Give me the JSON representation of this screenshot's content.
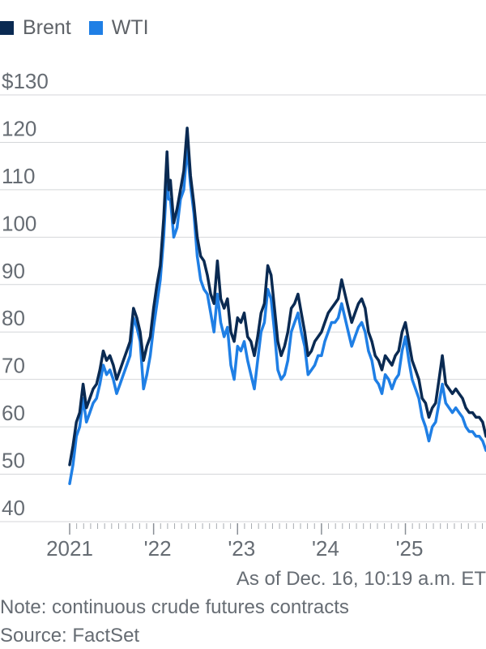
{
  "legend": [
    {
      "label": "Brent",
      "color": "#0a2a52"
    },
    {
      "label": "WTI",
      "color": "#1f7fe5"
    }
  ],
  "footer": {
    "as_of": "As of Dec. 16, 10:19 a.m. ET",
    "note": "Note: continuous crude futures contracts",
    "source": "Source: FactSet"
  },
  "chart_data": {
    "type": "line",
    "title": "",
    "xlabel": "",
    "ylabel": "",
    "y_tick_labels": [
      "$130",
      "120",
      "110",
      "100",
      "90",
      "80",
      "70",
      "60",
      "50",
      "40"
    ],
    "y_ticks": [
      130,
      120,
      110,
      100,
      90,
      80,
      70,
      60,
      50,
      40
    ],
    "x_tick_labels": [
      "2021",
      "'22",
      "'23",
      "'24",
      "'25"
    ],
    "x_ticks": [
      2021,
      2022,
      2023,
      2024,
      2025
    ],
    "xlim": [
      2021,
      2025.96
    ],
    "ylim": [
      40,
      130
    ],
    "grid": true,
    "legend_position": "top-left",
    "series": [
      {
        "name": "Brent",
        "color": "#0a2a52",
        "x": [
          2021.0,
          2021.04,
          2021.08,
          2021.12,
          2021.16,
          2021.2,
          2021.24,
          2021.28,
          2021.32,
          2021.36,
          2021.4,
          2021.44,
          2021.48,
          2021.52,
          2021.56,
          2021.6,
          2021.64,
          2021.68,
          2021.72,
          2021.76,
          2021.8,
          2021.84,
          2021.88,
          2021.92,
          2021.96,
          2022.0,
          2022.04,
          2022.08,
          2022.12,
          2022.16,
          2022.18,
          2022.2,
          2022.24,
          2022.28,
          2022.32,
          2022.36,
          2022.4,
          2022.44,
          2022.48,
          2022.52,
          2022.56,
          2022.6,
          2022.64,
          2022.68,
          2022.72,
          2022.76,
          2022.8,
          2022.84,
          2022.88,
          2022.92,
          2022.96,
          2023.0,
          2023.04,
          2023.08,
          2023.12,
          2023.16,
          2023.2,
          2023.24,
          2023.28,
          2023.32,
          2023.36,
          2023.4,
          2023.44,
          2023.48,
          2023.52,
          2023.56,
          2023.6,
          2023.64,
          2023.68,
          2023.72,
          2023.76,
          2023.8,
          2023.84,
          2023.88,
          2023.92,
          2023.96,
          2024.0,
          2024.04,
          2024.08,
          2024.12,
          2024.16,
          2024.2,
          2024.24,
          2024.28,
          2024.32,
          2024.36,
          2024.4,
          2024.44,
          2024.48,
          2024.52,
          2024.56,
          2024.6,
          2024.64,
          2024.68,
          2024.72,
          2024.76,
          2024.8,
          2024.84,
          2024.88,
          2024.92,
          2024.96,
          2025.0,
          2025.04,
          2025.08,
          2025.12,
          2025.16,
          2025.2,
          2025.24,
          2025.28,
          2025.32,
          2025.36,
          2025.4,
          2025.44,
          2025.48,
          2025.52,
          2025.56,
          2025.6,
          2025.64,
          2025.68,
          2025.72,
          2025.76,
          2025.8,
          2025.84,
          2025.88,
          2025.92,
          2025.96
        ],
        "values": [
          52,
          56,
          61,
          63,
          69,
          64,
          66,
          68,
          69,
          72,
          76,
          74,
          75,
          73,
          70,
          72,
          74,
          76,
          78,
          85,
          83,
          80,
          74,
          77,
          79,
          85,
          90,
          94,
          104,
          118,
          110,
          112,
          103,
          106,
          110,
          114,
          123,
          113,
          107,
          100,
          96,
          95,
          92,
          88,
          86,
          95,
          87,
          85,
          87,
          80,
          78,
          83,
          82,
          84,
          79,
          78,
          75,
          79,
          84,
          86,
          94,
          92,
          85,
          78,
          75,
          77,
          80,
          85,
          86,
          88,
          84,
          80,
          75,
          76,
          78,
          79,
          80,
          82,
          84,
          85,
          86,
          87,
          91,
          88,
          85,
          82,
          84,
          86,
          87,
          85,
          80,
          78,
          75,
          74,
          72,
          75,
          74,
          73,
          75,
          76,
          80,
          82,
          78,
          74,
          72,
          70,
          66,
          65,
          62,
          64,
          65,
          70,
          75,
          69,
          68,
          67,
          68,
          67,
          66,
          64,
          63,
          63,
          62,
          62,
          61,
          58
        ]
      },
      {
        "name": "WTI",
        "color": "#1f7fe5",
        "x": [
          2021.0,
          2021.04,
          2021.08,
          2021.12,
          2021.16,
          2021.2,
          2021.24,
          2021.28,
          2021.32,
          2021.36,
          2021.4,
          2021.44,
          2021.48,
          2021.52,
          2021.56,
          2021.6,
          2021.64,
          2021.68,
          2021.72,
          2021.76,
          2021.8,
          2021.84,
          2021.88,
          2021.92,
          2021.96,
          2022.0,
          2022.04,
          2022.08,
          2022.12,
          2022.16,
          2022.18,
          2022.2,
          2022.24,
          2022.28,
          2022.32,
          2022.36,
          2022.4,
          2022.44,
          2022.48,
          2022.52,
          2022.56,
          2022.6,
          2022.64,
          2022.68,
          2022.72,
          2022.76,
          2022.8,
          2022.84,
          2022.88,
          2022.92,
          2022.96,
          2023.0,
          2023.04,
          2023.08,
          2023.12,
          2023.16,
          2023.2,
          2023.24,
          2023.28,
          2023.32,
          2023.36,
          2023.4,
          2023.44,
          2023.48,
          2023.52,
          2023.56,
          2023.6,
          2023.64,
          2023.68,
          2023.72,
          2023.76,
          2023.8,
          2023.84,
          2023.88,
          2023.92,
          2023.96,
          2024.0,
          2024.04,
          2024.08,
          2024.12,
          2024.16,
          2024.2,
          2024.24,
          2024.28,
          2024.32,
          2024.36,
          2024.4,
          2024.44,
          2024.48,
          2024.52,
          2024.56,
          2024.6,
          2024.64,
          2024.68,
          2024.72,
          2024.76,
          2024.8,
          2024.84,
          2024.88,
          2024.92,
          2024.96,
          2025.0,
          2025.04,
          2025.08,
          2025.12,
          2025.16,
          2025.2,
          2025.24,
          2025.28,
          2025.32,
          2025.36,
          2025.4,
          2025.44,
          2025.48,
          2025.52,
          2025.56,
          2025.6,
          2025.64,
          2025.68,
          2025.72,
          2025.76,
          2025.8,
          2025.84,
          2025.88,
          2025.92,
          2025.96
        ],
        "values": [
          48,
          52,
          58,
          60,
          66,
          61,
          63,
          65,
          66,
          69,
          73,
          71,
          72,
          70,
          67,
          69,
          71,
          73,
          75,
          83,
          81,
          78,
          68,
          71,
          75,
          81,
          86,
          91,
          100,
          113,
          108,
          108,
          100,
          102,
          108,
          110,
          119,
          111,
          105,
          96,
          91,
          89,
          88,
          84,
          80,
          88,
          82,
          79,
          81,
          73,
          70,
          77,
          76,
          78,
          74,
          71,
          68,
          74,
          80,
          82,
          89,
          87,
          80,
          72,
          70,
          71,
          74,
          80,
          82,
          84,
          80,
          77,
          71,
          72,
          73,
          75,
          75,
          78,
          80,
          82,
          82,
          83,
          86,
          83,
          80,
          77,
          79,
          81,
          82,
          80,
          76,
          74,
          70,
          69,
          67,
          71,
          70,
          68,
          70,
          71,
          76,
          79,
          74,
          70,
          68,
          66,
          62,
          60,
          57,
          60,
          61,
          65,
          69,
          65,
          64,
          63,
          64,
          63,
          62,
          60,
          59,
          59,
          58,
          58,
          57,
          55
        ]
      }
    ]
  }
}
